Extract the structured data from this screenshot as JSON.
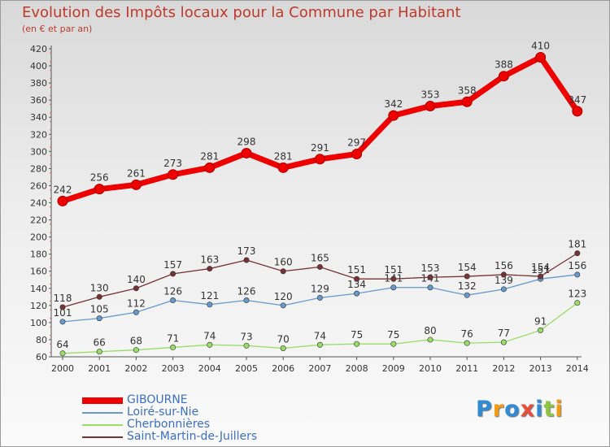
{
  "chart_data": {
    "type": "line",
    "title": "Evolution des Impôts locaux pour la Commune par Habitant",
    "subtitle": "(en € et par an)",
    "categories": [
      "2000",
      "2001",
      "2002",
      "2003",
      "2004",
      "2005",
      "2006",
      "2007",
      "2008",
      "2009",
      "2010",
      "2011",
      "2012",
      "2013",
      "2014"
    ],
    "ylim": [
      60,
      420
    ],
    "yticks": [
      60,
      80,
      100,
      120,
      140,
      160,
      180,
      200,
      220,
      240,
      260,
      280,
      300,
      320,
      340,
      360,
      380,
      400,
      420
    ],
    "grid": false,
    "legend_position": "bottom-left",
    "series": [
      {
        "name": "GIBOURNE",
        "color": "#ee0000",
        "values": [
          242,
          256,
          261,
          273,
          281,
          298,
          281,
          291,
          297,
          342,
          353,
          358,
          388,
          410,
          347
        ]
      },
      {
        "name": "Loiré-sur-Nie",
        "color": "#6699cc",
        "values": [
          101,
          105,
          112,
          126,
          121,
          126,
          120,
          129,
          134,
          141,
          141,
          132,
          139,
          151,
          156
        ]
      },
      {
        "name": "Cherbonnières",
        "color": "#99dd66",
        "values": [
          64,
          66,
          68,
          71,
          74,
          73,
          70,
          74,
          75,
          75,
          80,
          76,
          77,
          91,
          123
        ]
      },
      {
        "name": "Saint-Martin-de-Juillers",
        "color": "#773333",
        "values": [
          118,
          130,
          140,
          157,
          163,
          173,
          160,
          165,
          151,
          151,
          153,
          154,
          156,
          154,
          181
        ]
      }
    ]
  },
  "logo": {
    "letters": [
      "P",
      "r",
      "o",
      "x",
      "i",
      "t",
      "i"
    ],
    "colors": [
      "#2f8bd6",
      "#f39c12",
      "#2f8bd6",
      "#e74c3c",
      "#2f8bd6",
      "#8dc63f",
      "#f39c12"
    ]
  }
}
